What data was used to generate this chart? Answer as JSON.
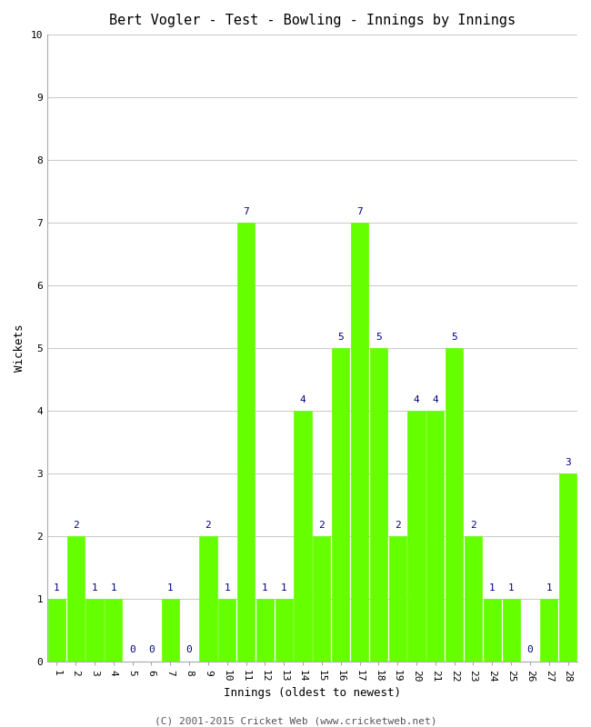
{
  "title": "Bert Vogler - Test - Bowling - Innings by Innings",
  "xlabel": "Innings (oldest to newest)",
  "ylabel": "Wickets",
  "categories": [
    1,
    2,
    3,
    4,
    5,
    6,
    7,
    8,
    9,
    10,
    11,
    12,
    13,
    14,
    15,
    16,
    17,
    18,
    19,
    20,
    21,
    22,
    23,
    24,
    25,
    26,
    27,
    28
  ],
  "values": [
    1,
    2,
    1,
    1,
    0,
    0,
    1,
    0,
    2,
    1,
    7,
    1,
    1,
    4,
    2,
    5,
    7,
    5,
    2,
    4,
    4,
    5,
    2,
    1,
    1,
    0,
    1,
    3
  ],
  "bar_color": "#66ff00",
  "bar_edge_color": "#66ff00",
  "label_color": "#000080",
  "ylim": [
    0,
    10
  ],
  "xlim": [
    0.5,
    28.5
  ],
  "yticks": [
    0,
    1,
    2,
    3,
    4,
    5,
    6,
    7,
    8,
    9,
    10
  ],
  "title_fontsize": 11,
  "axis_label_fontsize": 9,
  "tick_fontsize": 8,
  "annotation_fontsize": 8,
  "footer": "(C) 2001-2015 Cricket Web (www.cricketweb.net)",
  "background_color": "#ffffff",
  "grid_color": "#cccccc",
  "bar_width": 0.92
}
